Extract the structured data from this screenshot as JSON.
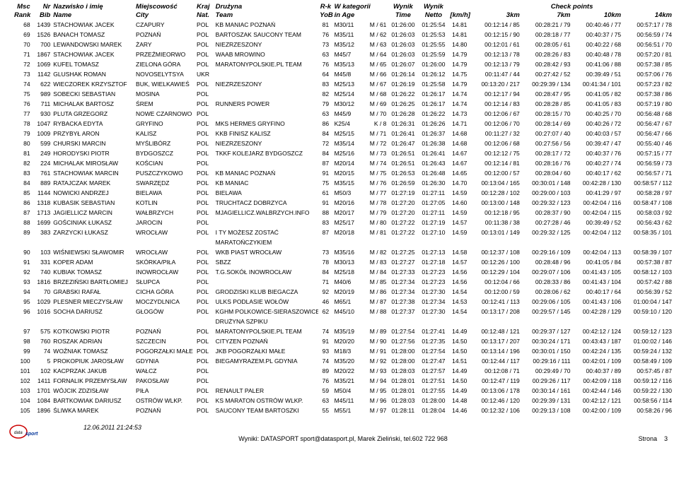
{
  "headers": {
    "msc": "Msc",
    "rank": "Rank",
    "nr": "Nr",
    "bib": "Bib",
    "nazwisko": "Nazwisko i imię",
    "name": "Name",
    "miejscowosc": "Miejscowość",
    "city": "City",
    "kraj": "Kraj",
    "nat": "Nat.",
    "druzyna": "Drużyna",
    "team": "Team",
    "rk": "R-k",
    "yob": "YoB",
    "wkat": "W kategorii",
    "inage": "in Age",
    "wynik": "Wynik",
    "time": "Time",
    "wynik2": "Wynik",
    "netto": "Netto",
    "kmh": "[km/h]",
    "cp": "Check points",
    "c3": "3km",
    "c7": "7km",
    "c10": "10km",
    "c14": "14km"
  },
  "rows": [
    {
      "msc": "68",
      "bib": "1439",
      "name": "STACHOWIAK JACEK",
      "city": "CZAPURY",
      "nat": "POL",
      "team": "KB MANIAC POZNAŃ",
      "yob": "81",
      "cat": "M30/11",
      "catrank": "M / 61",
      "time": "01:26:00",
      "netto": "01:25:54",
      "kmh": "14.81",
      "c3": "00:12:14 / 85",
      "c7": "00:28:21 / 79",
      "c10": "00:40:46 / 77",
      "c14": "00:57:17 / 78"
    },
    {
      "msc": "69",
      "bib": "1526",
      "name": "BANACH TOMASZ",
      "city": "POZNAŃ",
      "nat": "POL",
      "team": "BARTOSZAK SAUCONY TEAM",
      "yob": "76",
      "cat": "M35/11",
      "catrank": "M / 62",
      "time": "01:26:03",
      "netto": "01:25:53",
      "kmh": "14.81",
      "c3": "00:12:15 / 90",
      "c7": "00:28:18 / 77",
      "c10": "00:40:37 / 75",
      "c14": "00:56:59 / 74"
    },
    {
      "msc": "70",
      "bib": "700",
      "name": "LEWANDOWSKI MAREK",
      "city": "ŻARY",
      "nat": "POL",
      "team": "NIEZRZESZONY",
      "yob": "73",
      "cat": "M35/12",
      "catrank": "M / 63",
      "time": "01:26:03",
      "netto": "01:25:55",
      "kmh": "14.80",
      "c3": "00:12:01 / 61",
      "c7": "00:28:05 / 61",
      "c10": "00:40:22 / 68",
      "c14": "00:56:51 / 70"
    },
    {
      "msc": "71",
      "bib": "1867",
      "name": "STACHOWIAK JACEK",
      "city": "PRZEŹMIEORWO",
      "nat": "POL",
      "team": "WAAB MROWINO",
      "yob": "63",
      "cat": "M45/7",
      "catrank": "M / 64",
      "time": "01:26:03",
      "netto": "01:25:59",
      "kmh": "14.79",
      "c3": "00:12:13 / 78",
      "c7": "00:28:26 / 83",
      "c10": "00:40:48 / 78",
      "c14": "00:57:20 / 81"
    },
    {
      "msc": "72",
      "bib": "1069",
      "name": "KUFEL TOMASZ",
      "city": "ZIELONA GÓRA",
      "nat": "POL",
      "team": "MARATONYPOLSKIE.PL TEAM",
      "yob": "76",
      "cat": "M35/13",
      "catrank": "M / 65",
      "time": "01:26:07",
      "netto": "01:26:00",
      "kmh": "14.79",
      "c3": "00:12:13 / 79",
      "c7": "00:28:42 / 93",
      "c10": "00:41:06 / 88",
      "c14": "00:57:38 / 85"
    },
    {
      "msc": "73",
      "bib": "1142",
      "name": "GLUSHAK ROMAN",
      "city": "NOVOSELYTSYA",
      "nat": "UKR",
      "team": "",
      "yob": "64",
      "cat": "M45/8",
      "catrank": "M / 66",
      "time": "01:26:14",
      "netto": "01:26:12",
      "kmh": "14.75",
      "c3": "00:11:47 / 44",
      "c7": "00:27:42 / 52",
      "c10": "00:39:49 / 51",
      "c14": "00:57:06 / 76"
    },
    {
      "msc": "74",
      "bib": "622",
      "name": "WIECZOREK KRZYSZTOF",
      "city": "BUK, WIELKAWIEŚ",
      "nat": "POL",
      "team": "NIEZRZESZONY",
      "yob": "83",
      "cat": "M25/13",
      "catrank": "M / 67",
      "time": "01:26:19",
      "netto": "01:25:58",
      "kmh": "14.79",
      "c3": "00:13:20 / 217",
      "c7": "00:29:39 / 134",
      "c10": "00:41:34 / 101",
      "c14": "00:57:23 / 82"
    },
    {
      "msc": "75",
      "bib": "989",
      "name": "SOBECKI SEBASTIAN",
      "city": "MOSINA",
      "nat": "POL",
      "team": "",
      "yob": "82",
      "cat": "M25/14",
      "catrank": "M / 68",
      "time": "01:26:22",
      "netto": "01:26:17",
      "kmh": "14.74",
      "c3": "00:12:17 / 94",
      "c7": "00:28:47 / 95",
      "c10": "00:41:05 / 82",
      "c14": "00:57:38 / 86"
    },
    {
      "msc": "76",
      "bib": "711",
      "name": "MICHALAK BARTOSZ",
      "city": "ŚREM",
      "nat": "POL",
      "team": "RUNNERS POWER",
      "yob": "79",
      "cat": "M30/12",
      "catrank": "M / 69",
      "time": "01:26:25",
      "netto": "01:26:17",
      "kmh": "14.74",
      "c3": "00:12:14 / 83",
      "c7": "00:28:28 / 85",
      "c10": "00:41:05 / 83",
      "c14": "00:57:19 / 80"
    },
    {
      "msc": "77",
      "bib": "930",
      "name": "PLUTA GRZEGORZ",
      "city": "NOWE CZARNOWO",
      "nat": "POL",
      "team": "",
      "yob": "63",
      "cat": "M45/9",
      "catrank": "M / 70",
      "time": "01:26:28",
      "netto": "01:26:22",
      "kmh": "14.73",
      "c3": "00:12:06 / 67",
      "c7": "00:28:15 / 70",
      "c10": "00:40:25 / 70",
      "c14": "00:56:48 / 68"
    },
    {
      "msc": "78",
      "bib": "1047",
      "name": "RYBACKA EDYTA",
      "city": "GRYFINO",
      "nat": "POL",
      "team": "MKS HERMES GRYFINO",
      "yob": "86",
      "cat": "K25/4",
      "catrank": "K / 8",
      "time": "01:26:31",
      "netto": "01:26:26",
      "kmh": "14.71",
      "c3": "00:12:06 / 70",
      "c7": "00:28:14 / 69",
      "c10": "00:40:26 / 72",
      "c14": "00:56:47 / 67"
    },
    {
      "msc": "79",
      "bib": "1009",
      "name": "PRZYBYŁ ARON",
      "city": "KALISZ",
      "nat": "POL",
      "team": "KKB FINISZ KALISZ",
      "yob": "84",
      "cat": "M25/15",
      "catrank": "M / 71",
      "time": "01:26:41",
      "netto": "01:26:37",
      "kmh": "14.68",
      "c3": "00:11:27 / 32",
      "c7": "00:27:07 / 40",
      "c10": "00:40:03 / 57",
      "c14": "00:56:47 / 66"
    },
    {
      "msc": "80",
      "bib": "599",
      "name": "CHURSKI MARCIN",
      "city": "MYŚLIBÓRZ",
      "nat": "POL",
      "team": "NIEZRZESZONY",
      "yob": "72",
      "cat": "M35/14",
      "catrank": "M / 72",
      "time": "01:26:47",
      "netto": "01:26:38",
      "kmh": "14.68",
      "c3": "00:12:06 / 68",
      "c7": "00:27:56 / 56",
      "c10": "00:39:47 / 47",
      "c14": "00:55:40 / 46"
    },
    {
      "msc": "81",
      "bib": "249",
      "name": "HORODYSKI PIOTR",
      "city": "BYDGOSZCZ",
      "nat": "POL",
      "team": "TKKF KOLEJARZ BYDGOSZCZ",
      "yob": "84",
      "cat": "M25/16",
      "catrank": "M / 73",
      "time": "01:26:51",
      "netto": "01:26:41",
      "kmh": "14.67",
      "c3": "00:12:12 / 75",
      "c7": "00:28:17 / 72",
      "c10": "00:40:37 / 76",
      "c14": "00:57:15 / 77"
    },
    {
      "msc": "82",
      "bib": "224",
      "name": "MICHALAK MIROSŁAW",
      "city": "KOŚCIAN",
      "nat": "POL",
      "team": "",
      "yob": "87",
      "cat": "M20/14",
      "catrank": "M / 74",
      "time": "01:26:51",
      "netto": "01:26:43",
      "kmh": "14.67",
      "c3": "00:12:14 / 81",
      "c7": "00:28:16 / 76",
      "c10": "00:40:27 / 74",
      "c14": "00:56:59 / 73"
    },
    {
      "msc": "83",
      "bib": "761",
      "name": "STACHOWIAK MARCIN",
      "city": "PUSZCZYKOWO",
      "nat": "POL",
      "team": "KB MANIAC POZNAŃ",
      "yob": "91",
      "cat": "M20/15",
      "catrank": "M / 75",
      "time": "01:26:53",
      "netto": "01:26:48",
      "kmh": "14.65",
      "c3": "00:12:00 / 57",
      "c7": "00:28:04 / 60",
      "c10": "00:40:17 / 62",
      "c14": "00:56:57 / 71"
    },
    {
      "msc": "84",
      "bib": "889",
      "name": "RATAJCZAK MAREK",
      "city": "SWARZĘDZ",
      "nat": "POL",
      "team": "KB MANIAC",
      "yob": "75",
      "cat": "M35/15",
      "catrank": "M / 76",
      "time": "01:26:59",
      "netto": "01:26:30",
      "kmh": "14.70",
      "c3": "00:13:04 / 165",
      "c7": "00:30:01 / 148",
      "c10": "00:42:28 / 130",
      "c14": "00:58:57 / 112"
    },
    {
      "msc": "85",
      "bib": "1144",
      "name": "NOWICKI ANDRZEJ",
      "city": "BIELAWA",
      "nat": "POL",
      "team": "BIELAWA",
      "yob": "61",
      "cat": "M50/3",
      "catrank": "M / 77",
      "time": "01:27:19",
      "netto": "01:27:11",
      "kmh": "14.59",
      "c3": "00:12:28 / 102",
      "c7": "00:29:00 / 103",
      "c10": "00:41:29 / 97",
      "c14": "00:58:28 / 97"
    },
    {
      "msc": "86",
      "bib": "1318",
      "name": "KUBASIK SEBASTIAN",
      "city": "KOTLIN",
      "nat": "POL",
      "team": "TRUCHTACZ DOBRZYCA",
      "yob": "91",
      "cat": "M20/16",
      "catrank": "M / 78",
      "time": "01:27:20",
      "netto": "01:27:05",
      "kmh": "14.60",
      "c3": "00:13:00 / 148",
      "c7": "00:29:32 / 123",
      "c10": "00:42:04 / 116",
      "c14": "00:58:47 / 108"
    },
    {
      "msc": "87",
      "bib": "1713",
      "name": "JAGIELLICZ MARCIN",
      "city": "WAŁBRZYCH",
      "nat": "POL",
      "team": "MJAGIELLICZ.WALBRZYCH.INFO",
      "yob": "88",
      "cat": "M20/17",
      "catrank": "M / 79",
      "time": "01:27:20",
      "netto": "01:27:11",
      "kmh": "14.59",
      "c3": "00:12:18 / 95",
      "c7": "00:28:37 / 90",
      "c10": "00:42:04 / 115",
      "c14": "00:58:03 / 92"
    },
    {
      "msc": "88",
      "bib": "1699",
      "name": "GOŚCINIAK ŁUKASZ",
      "city": "JAROCIN",
      "nat": "POL",
      "team": "",
      "yob": "83",
      "cat": "M25/17",
      "catrank": "M / 80",
      "time": "01:27:22",
      "netto": "01:27:19",
      "kmh": "14.57",
      "c3": "00:11:38 / 38",
      "c7": "00:27:28 / 46",
      "c10": "00:39:49 / 52",
      "c14": "00:56:43 / 62"
    },
    {
      "msc": "89",
      "bib": "383",
      "name": "ZARZYCKI ŁUKASZ",
      "city": "WROCŁAW",
      "nat": "POL",
      "team": "I TY MOŻESZ ZOSTAĆ",
      "team2": "MARATOŃCZYKIEM",
      "yob": "87",
      "cat": "M20/18",
      "catrank": "M / 81",
      "time": "01:27:22",
      "netto": "01:27:10",
      "kmh": "14.59",
      "c3": "00:13:01 / 149",
      "c7": "00:29:32 / 125",
      "c10": "00:42:04 / 112",
      "c14": "00:58:35 / 101"
    },
    {
      "msc": "90",
      "bib": "103",
      "name": "WIŚNIEWSKI SŁAWOMIR",
      "city": "WROCŁAW",
      "nat": "POL",
      "team": "WKB PIAST WROCŁAW",
      "yob": "73",
      "cat": "M35/16",
      "catrank": "M / 82",
      "time": "01:27:25",
      "netto": "01:27:13",
      "kmh": "14.58",
      "c3": "00:12:37 / 108",
      "c7": "00:29:16 / 109",
      "c10": "00:42:04 / 113",
      "c14": "00:58:39 / 107"
    },
    {
      "msc": "91",
      "bib": "331",
      "name": "KOPER ADAM",
      "city": "SKÓRKA/PIŁA",
      "nat": "POL",
      "team": "SBZZ",
      "yob": "78",
      "cat": "M30/13",
      "catrank": "M / 83",
      "time": "01:27:27",
      "netto": "01:27:18",
      "kmh": "14.57",
      "c3": "00:12:26 / 100",
      "c7": "00:28:48 / 96",
      "c10": "00:41:05 / 84",
      "c14": "00:57:38 / 87"
    },
    {
      "msc": "92",
      "bib": "740",
      "name": "KUBIAK TOMASZ",
      "city": "INOWROCŁAW",
      "nat": "POL",
      "team": "T.G.SOKÓŁ INOWROCŁAW",
      "yob": "84",
      "cat": "M25/18",
      "catrank": "M / 84",
      "time": "01:27:33",
      "netto": "01:27:23",
      "kmh": "14.56",
      "c3": "00:12:29 / 104",
      "c7": "00:29:07 / 106",
      "c10": "00:41:43 / 105",
      "c14": "00:58:12 / 103"
    },
    {
      "msc": "93",
      "bib": "1816",
      "name": "BRZEZIŃSKI BARTŁOMIEJ",
      "city": "SŁUPCA",
      "nat": "POL",
      "team": "",
      "yob": "71",
      "cat": "M40/6",
      "catrank": "M / 85",
      "time": "01:27:34",
      "netto": "01:27:23",
      "kmh": "14.56",
      "c3": "00:12:04 / 66",
      "c7": "00:28:33 / 86",
      "c10": "00:41:43 / 104",
      "c14": "00:57:42 / 88"
    },
    {
      "msc": "94",
      "bib": "70",
      "name": "GRABSKI RAFAŁ",
      "city": "CICHA GÓRA",
      "nat": "POL",
      "team": "GRODZISKI KLUB BIEGACZA",
      "yob": "92",
      "cat": "M20/19",
      "catrank": "M / 86",
      "time": "01:27:34",
      "netto": "01:27:30",
      "kmh": "14.54",
      "c3": "00:12:00 / 59",
      "c7": "00:28:06 / 62",
      "c10": "00:40:17 / 64",
      "c14": "00:56:39 / 52"
    },
    {
      "msc": "95",
      "bib": "1029",
      "name": "PLESNER MIECZYSŁAW",
      "city": "MOCZYDLNICA",
      "nat": "POL",
      "team": "ULKS PODLASIE WOŁÓW",
      "yob": "46",
      "cat": "M65/1",
      "catrank": "M / 87",
      "time": "01:27:38",
      "netto": "01:27:34",
      "kmh": "14.53",
      "c3": "00:12:41 / 113",
      "c7": "00:29:06 / 105",
      "c10": "00:41:43 / 106",
      "c14": "01:00:04 / 147"
    },
    {
      "msc": "96",
      "bib": "1016",
      "name": "SOCHA DARIUSZ",
      "city": "GŁOGÓW",
      "nat": "POL",
      "team": "KGHM POLKOWICE-SIERASZOWICE",
      "team2": "DRUŻYNA SZPIKU",
      "yob": "62",
      "cat": "M45/10",
      "catrank": "M / 88",
      "time": "01:27:37",
      "netto": "01:27:30",
      "kmh": "14.54",
      "c3": "00:13:17 / 208",
      "c7": "00:29:57 / 145",
      "c10": "00:42:28 / 129",
      "c14": "00:59:10 / 120"
    },
    {
      "msc": "97",
      "bib": "575",
      "name": "KOTKOWSKI PIOTR",
      "city": "POZNAŃ",
      "nat": "POL",
      "team": "MARATONYPOLSKIE.PL TEAM",
      "yob": "74",
      "cat": "M35/19",
      "catrank": "M / 89",
      "time": "01:27:54",
      "netto": "01:27:41",
      "kmh": "14.49",
      "c3": "00:12:48 / 121",
      "c7": "00:29:37 / 127",
      "c10": "00:42:12 / 124",
      "c14": "00:59:12 / 123"
    },
    {
      "msc": "98",
      "bib": "760",
      "name": "ROSZAK ADRIAN",
      "city": "SZCZECIN",
      "nat": "POL",
      "team": "CITYZEN POZNAŃ",
      "yob": "91",
      "cat": "M20/20",
      "catrank": "M / 90",
      "time": "01:27:56",
      "netto": "01:27:35",
      "kmh": "14.50",
      "c3": "00:13:17 / 207",
      "c7": "00:30:24 / 171",
      "c10": "00:43:43 / 187",
      "c14": "01:00:02 / 146"
    },
    {
      "msc": "99",
      "bib": "74",
      "name": "WOŹNIAK TOMASZ",
      "city": "POGORZAŁKI MAŁE",
      "nat": "POL",
      "team": "JKB POGORZAŁKI MAŁE",
      "yob": "93",
      "cat": "M18/3",
      "catrank": "M / 91",
      "time": "01:28:00",
      "netto": "01:27:54",
      "kmh": "14.50",
      "c3": "00:13:14 / 196",
      "c7": "00:30:01 / 150",
      "c10": "00:42:24 / 135",
      "c14": "00:59:24 / 132"
    },
    {
      "msc": "100",
      "bib": "5",
      "name": "PROKOPIUK JAROSŁAW",
      "city": "GDYNIA",
      "nat": "POL",
      "team": "BIEGAMYRAZEM.PL GDYNIA",
      "yob": "74",
      "cat": "M35/20",
      "catrank": "M / 92",
      "time": "01:28:00",
      "netto": "01:27:47",
      "kmh": "14.51",
      "c3": "00:12:44 / 117",
      "c7": "00:29:16 / 111",
      "c10": "00:42:01 / 109",
      "c14": "00:58:49 / 109"
    },
    {
      "msc": "101",
      "bib": "102",
      "name": "KACPRZAK JAKUB",
      "city": "WAŁCZ",
      "nat": "POL",
      "team": "",
      "yob": "89",
      "cat": "M20/22",
      "catrank": "M / 93",
      "time": "01:28:03",
      "netto": "01:27:57",
      "kmh": "14.49",
      "c3": "00:12:08 / 71",
      "c7": "00:29:49 / 70",
      "c10": "00:40:37 / 89",
      "c14": "00:57:45 / 87"
    },
    {
      "msc": "102",
      "bib": "1411",
      "name": "FORNALIK PRZEMYSŁAW",
      "city": "PAKOSŁAW",
      "nat": "POL",
      "team": "",
      "yob": "76",
      "cat": "M35/21",
      "catrank": "M / 94",
      "time": "01:28:01",
      "netto": "01:27:51",
      "kmh": "14.50",
      "c3": "00:12:47 / 119",
      "c7": "00:29:26 / 117",
      "c10": "00:42:09 / 118",
      "c14": "00:59:12 / 116"
    },
    {
      "msc": "103",
      "bib": "1701",
      "name": "WÓJCIK ZDZISŁAW",
      "city": "PIŁA",
      "nat": "POL",
      "team": "RENAULT PALER",
      "yob": "59",
      "cat": "M50/4",
      "catrank": "M / 95",
      "time": "01:28:01",
      "netto": "01:27:55",
      "kmh": "14.49",
      "c3": "00:13:06 / 178",
      "c7": "00:30:14 / 161",
      "c10": "00:42:44 / 146",
      "c14": "00:59:22 / 130"
    },
    {
      "msc": "104",
      "bib": "1084",
      "name": "BARTKOWIAK DARIUSZ",
      "city": "OSTRÓW WLKP.",
      "nat": "POL",
      "team": "KS MARATON OSTRÓW WLKP.",
      "yob": "63",
      "cat": "M45/11",
      "catrank": "M / 96",
      "time": "01:28:03",
      "netto": "01:28:00",
      "kmh": "14.48",
      "c3": "00:12:46 / 120",
      "c7": "00:29:39 / 131",
      "c10": "00:42:12 / 121",
      "c14": "00:58:56 / 114"
    },
    {
      "msc": "105",
      "bib": "1896",
      "name": "ŚLIWKA MAREK",
      "city": "POZNAŃ",
      "nat": "POL",
      "team": "SAUCONY TEAM BARTOSZKI",
      "yob": "55",
      "cat": "M55/1",
      "catrank": "M / 97",
      "time": "01:28:11",
      "netto": "01:28:04",
      "kmh": "14.46",
      "c3": "00:12:32 / 106",
      "c7": "00:29:13 / 108",
      "c10": "00:42:00 / 109",
      "c14": "00:58:26 / 96"
    }
  ],
  "footer": {
    "date": "12.06.2011 21:24:53",
    "center": "Wyniki: DATASPORT sport@datasport.pl, Marek Zieliński, tel.602 722 968",
    "right_label": "Strona",
    "right_page": "3",
    "logo": "datasport"
  }
}
